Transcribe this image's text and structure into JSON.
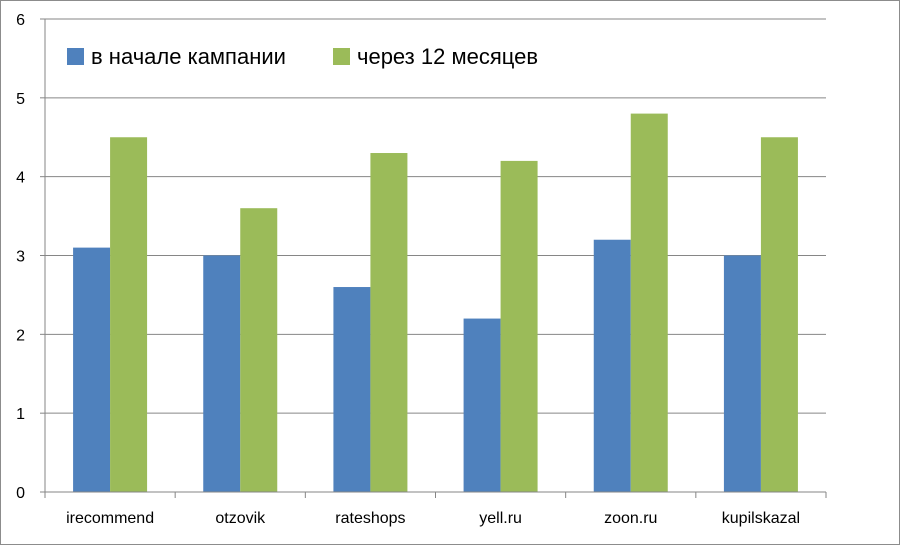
{
  "chart_data": {
    "type": "bar",
    "categories": [
      "irecommend",
      "otzovik",
      "rateshops",
      "yell.ru",
      "zoon.ru",
      "kupilskazal"
    ],
    "series": [
      {
        "name": "в начале кампании",
        "values": [
          3.1,
          3.0,
          2.6,
          2.2,
          3.2,
          3.0
        ],
        "color": "#4f81bd"
      },
      {
        "name": "через 12 месяцев",
        "values": [
          4.5,
          3.6,
          4.3,
          4.2,
          4.8,
          4.5
        ],
        "color": "#9bbb59"
      }
    ],
    "y_ticks": [
      "0",
      "1",
      "2",
      "3",
      "4",
      "5",
      "6"
    ],
    "ylim": [
      0,
      6
    ],
    "grid": true,
    "legend_position": "top-left",
    "title": "",
    "xlabel": "",
    "ylabel": ""
  }
}
